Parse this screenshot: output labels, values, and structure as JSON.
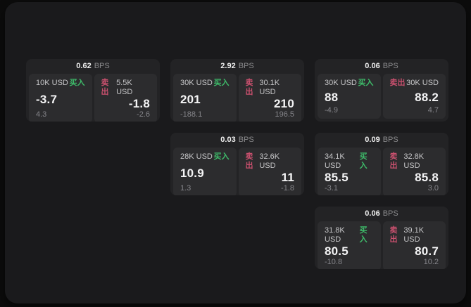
{
  "colors": {
    "buy": "#3ebc6a",
    "sell": "#c9506e",
    "window_bg": "#1a1a1c",
    "card_bg": "#232325",
    "panel_bg": "#2c2c2e"
  },
  "cards": [
    {
      "row": 1,
      "col": 1,
      "bps_value": "0.62",
      "bps_label": "BPS",
      "buy": {
        "amount": "10K USD",
        "side_label": "买入",
        "value": "-3.7",
        "sub_value": "4.3"
      },
      "sell": {
        "amount": "5.5K USD",
        "side_label": "卖出",
        "value": "-1.8",
        "sub_value": "-2.6"
      }
    },
    {
      "row": 1,
      "col": 2,
      "bps_value": "2.92",
      "bps_label": "BPS",
      "buy": {
        "amount": "30K USD",
        "side_label": "买入",
        "value": "201",
        "sub_value": "-188.1"
      },
      "sell": {
        "amount": "30.1K USD",
        "side_label": "卖出",
        "value": "210",
        "sub_value": "196.5"
      }
    },
    {
      "row": 1,
      "col": 3,
      "bps_value": "0.06",
      "bps_label": "BPS",
      "buy": {
        "amount": "30K USD",
        "side_label": "买入",
        "value": "88",
        "sub_value": "-4.9"
      },
      "sell": {
        "amount": "30K USD",
        "side_label": "卖出",
        "value": "88.2",
        "sub_value": "4.7"
      }
    },
    {
      "row": 2,
      "col": 2,
      "bps_value": "0.03",
      "bps_label": "BPS",
      "buy": {
        "amount": "28K USD",
        "side_label": "买入",
        "value": "10.9",
        "sub_value": "1.3"
      },
      "sell": {
        "amount": "32.6K USD",
        "side_label": "卖出",
        "value": "11",
        "sub_value": "-1.8"
      }
    },
    {
      "row": 2,
      "col": 3,
      "bps_value": "0.09",
      "bps_label": "BPS",
      "buy": {
        "amount": "34.1K USD",
        "side_label": "买入",
        "value": "85.5",
        "sub_value": "-3.1"
      },
      "sell": {
        "amount": "32.8K USD",
        "side_label": "卖出",
        "value": "85.8",
        "sub_value": "3.0"
      }
    },
    {
      "row": 3,
      "col": 3,
      "bps_value": "0.06",
      "bps_label": "BPS",
      "buy": {
        "amount": "31.8K USD",
        "side_label": "买入",
        "value": "80.5",
        "sub_value": "-10.8"
      },
      "sell": {
        "amount": "39.1K USD",
        "side_label": "卖出",
        "value": "80.7",
        "sub_value": "10.2"
      }
    }
  ]
}
